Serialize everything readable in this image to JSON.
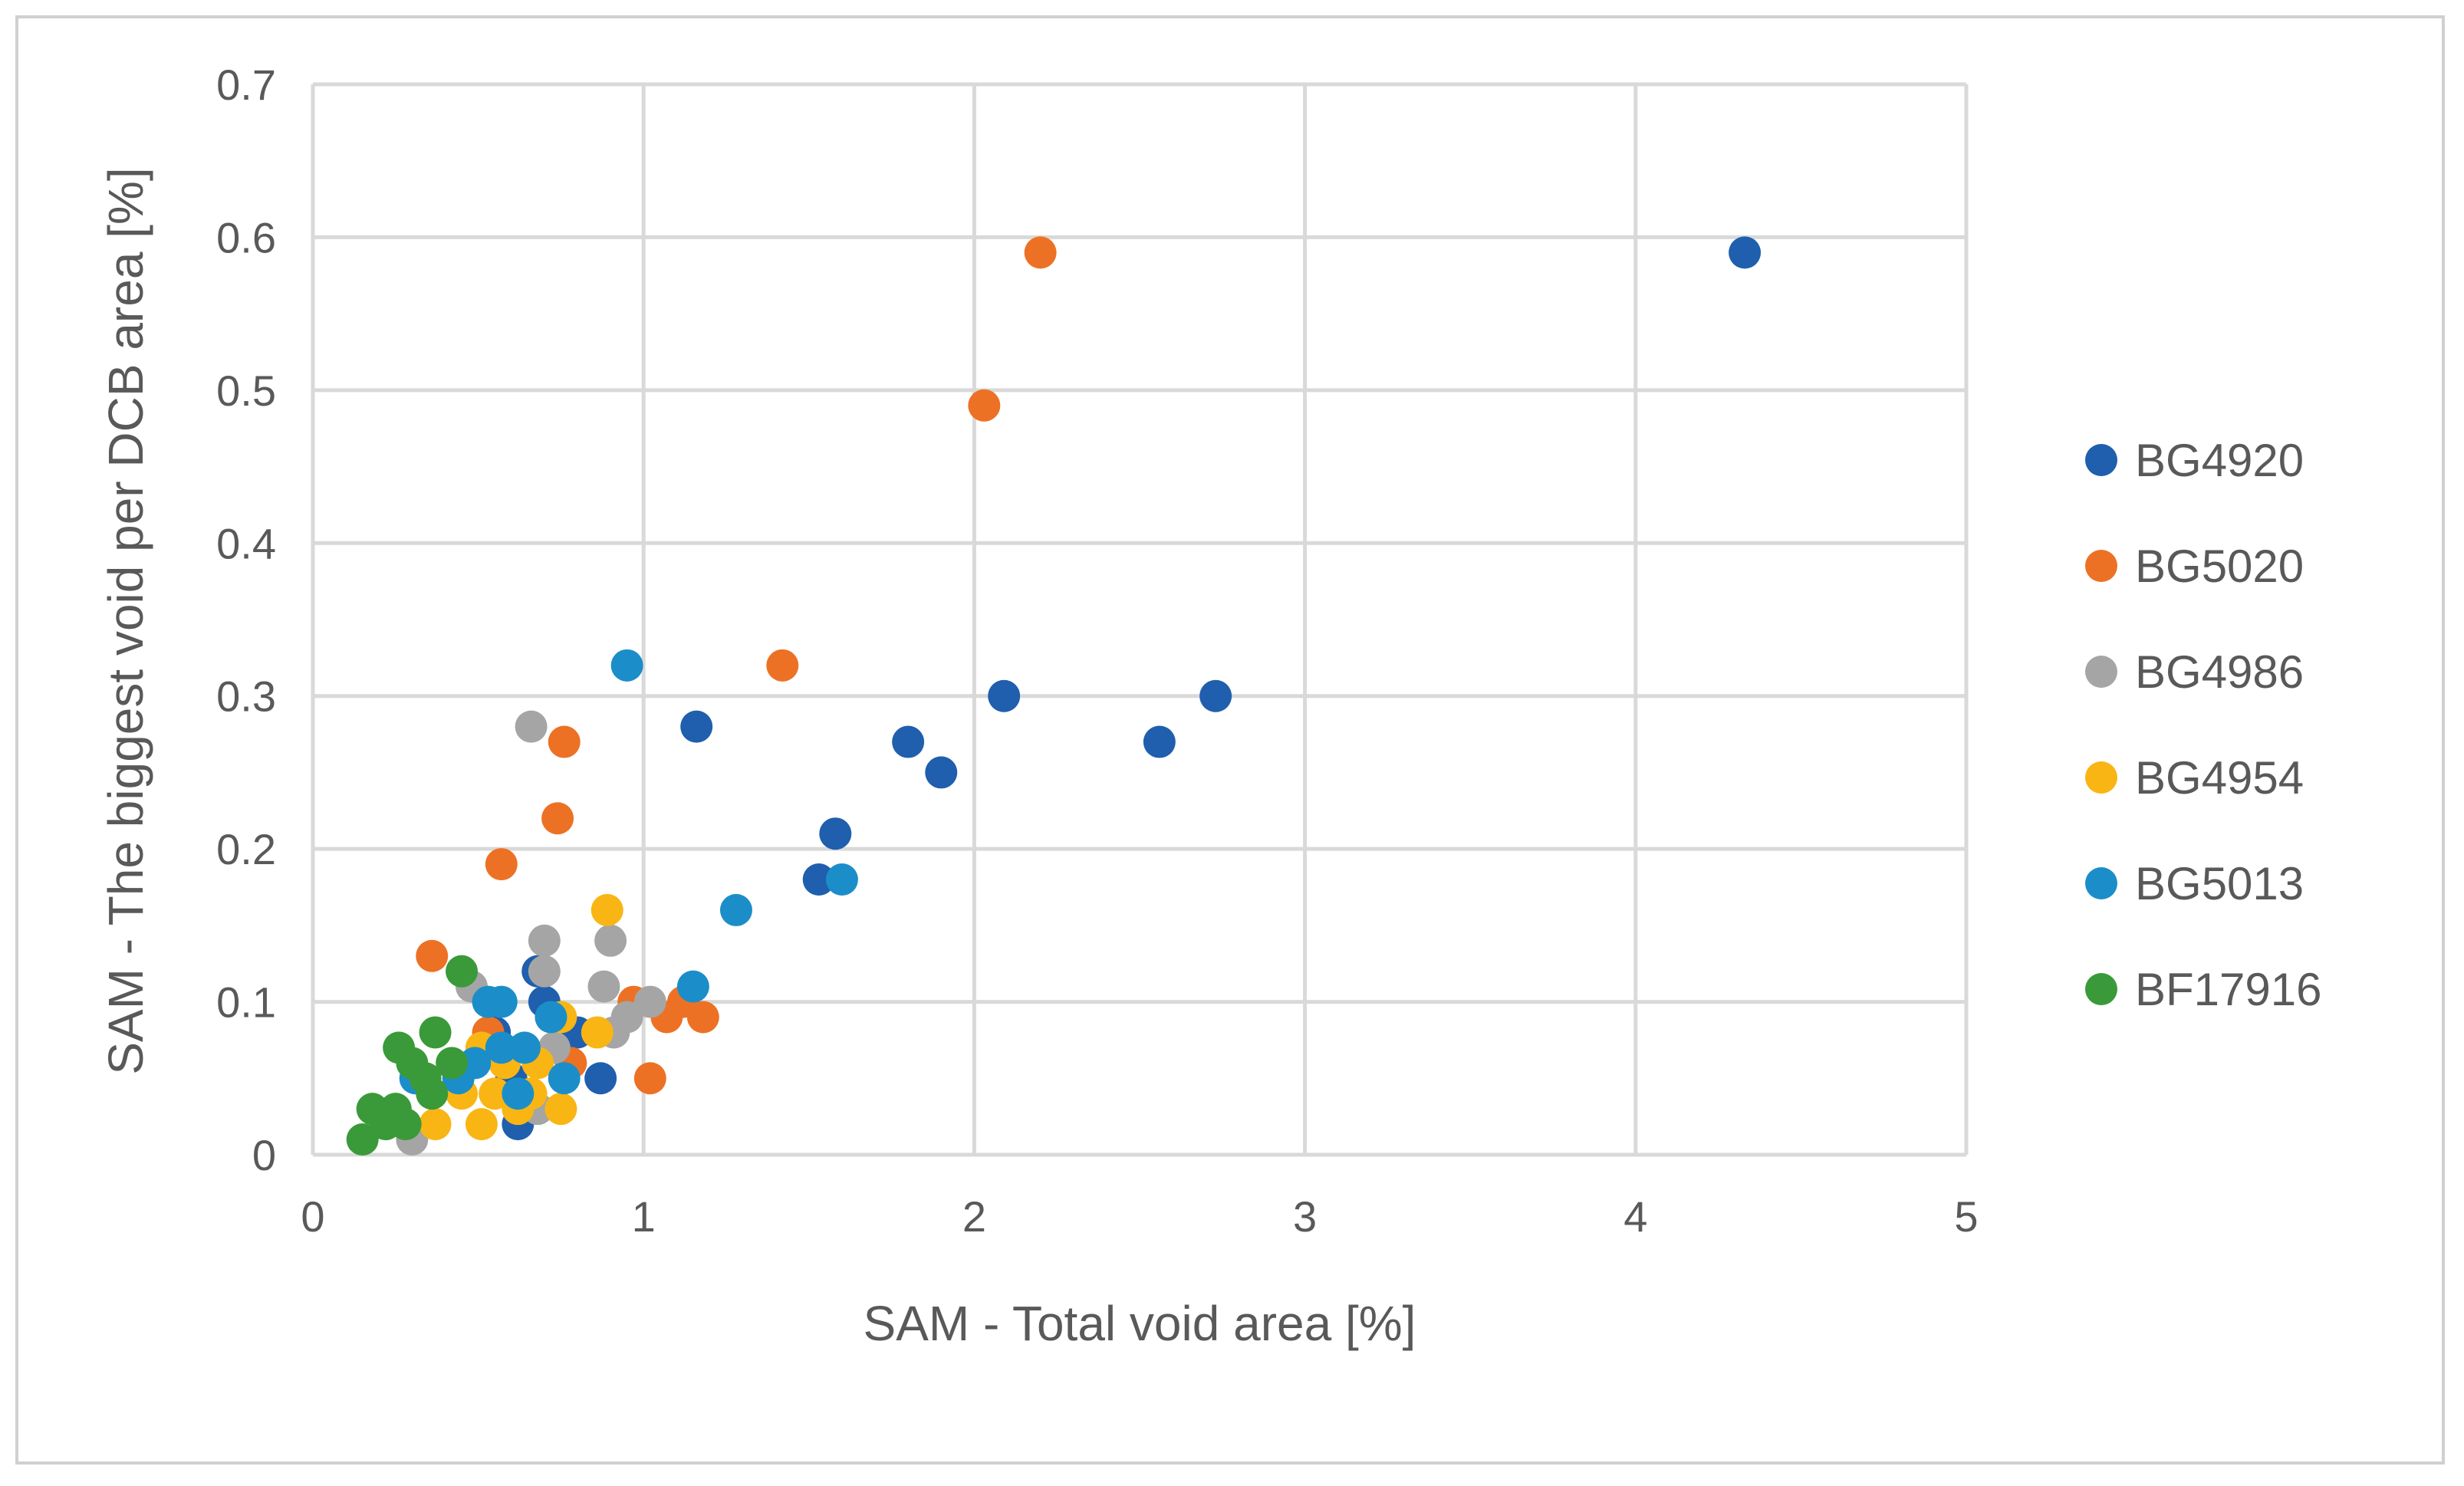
{
  "chart_data": {
    "type": "scatter",
    "title": "",
    "xlabel": "SAM - Total void area [%]",
    "ylabel": "SAM - The biggest void per DCB area [%]",
    "xlim": [
      0,
      5
    ],
    "ylim": [
      0,
      0.7
    ],
    "xticks": [
      0,
      1,
      2,
      3,
      4,
      5
    ],
    "yticks": [
      0,
      0.1,
      0.2,
      0.3,
      0.4,
      0.5,
      0.6,
      0.7
    ],
    "xtick_labels": [
      "0",
      "1",
      "2",
      "3",
      "4",
      "5"
    ],
    "ytick_labels": [
      "0",
      "0.1",
      "0.2",
      "0.3",
      "0.4",
      "0.5",
      "0.6",
      "0.7"
    ],
    "grid": true,
    "legend_position": "right",
    "series": [
      {
        "name": "BG4920",
        "color": "#1f5fad",
        "points": [
          [
            4.33,
            0.59
          ],
          [
            2.73,
            0.3
          ],
          [
            2.56,
            0.27
          ],
          [
            2.09,
            0.3
          ],
          [
            1.9,
            0.25
          ],
          [
            1.8,
            0.27
          ],
          [
            1.58,
            0.21
          ],
          [
            1.53,
            0.18
          ],
          [
            1.16,
            0.28
          ],
          [
            0.87,
            0.05
          ],
          [
            0.68,
            0.12
          ],
          [
            0.7,
            0.1
          ],
          [
            0.72,
            0.09
          ],
          [
            0.8,
            0.08
          ],
          [
            0.55,
            0.08
          ],
          [
            0.6,
            0.05
          ],
          [
            0.62,
            0.02
          ],
          [
            0.65,
            0.03
          ]
        ]
      },
      {
        "name": "BG5020",
        "color": "#ed7125",
        "points": [
          [
            2.2,
            0.59
          ],
          [
            2.03,
            0.49
          ],
          [
            1.42,
            0.32
          ],
          [
            0.76,
            0.27
          ],
          [
            0.74,
            0.22
          ],
          [
            0.57,
            0.19
          ],
          [
            0.36,
            0.13
          ],
          [
            1.18,
            0.09
          ],
          [
            1.07,
            0.09
          ],
          [
            1.12,
            0.1
          ],
          [
            0.97,
            0.1
          ],
          [
            1.02,
            0.05
          ],
          [
            0.53,
            0.08
          ],
          [
            0.78,
            0.06
          ]
        ]
      },
      {
        "name": "BG4986",
        "color": "#a5a5a5",
        "points": [
          [
            0.66,
            0.28
          ],
          [
            0.7,
            0.14
          ],
          [
            0.7,
            0.12
          ],
          [
            0.9,
            0.14
          ],
          [
            0.88,
            0.11
          ],
          [
            1.02,
            0.1
          ],
          [
            0.95,
            0.09
          ],
          [
            0.91,
            0.08
          ],
          [
            0.48,
            0.11
          ],
          [
            0.73,
            0.07
          ],
          [
            0.68,
            0.03
          ],
          [
            0.3,
            0.01
          ]
        ]
      },
      {
        "name": "BG4954",
        "color": "#f9b514",
        "points": [
          [
            0.89,
            0.16
          ],
          [
            0.86,
            0.08
          ],
          [
            0.75,
            0.09
          ],
          [
            0.75,
            0.03
          ],
          [
            0.51,
            0.07
          ],
          [
            0.58,
            0.06
          ],
          [
            0.68,
            0.06
          ],
          [
            0.45,
            0.04
          ],
          [
            0.55,
            0.04
          ],
          [
            0.66,
            0.04
          ],
          [
            0.62,
            0.03
          ],
          [
            0.51,
            0.02
          ],
          [
            0.37,
            0.02
          ]
        ]
      },
      {
        "name": "BG5013",
        "color": "#1b8ec9",
        "points": [
          [
            0.95,
            0.32
          ],
          [
            1.6,
            0.18
          ],
          [
            1.28,
            0.16
          ],
          [
            1.15,
            0.11
          ],
          [
            0.53,
            0.1
          ],
          [
            0.57,
            0.1
          ],
          [
            0.72,
            0.09
          ],
          [
            0.57,
            0.07
          ],
          [
            0.64,
            0.07
          ],
          [
            0.49,
            0.06
          ],
          [
            0.44,
            0.05
          ],
          [
            0.76,
            0.05
          ],
          [
            0.31,
            0.05
          ],
          [
            0.62,
            0.04
          ]
        ]
      },
      {
        "name": "BF17916",
        "color": "#3a9a39",
        "points": [
          [
            0.45,
            0.12
          ],
          [
            0.37,
            0.08
          ],
          [
            0.26,
            0.07
          ],
          [
            0.42,
            0.06
          ],
          [
            0.3,
            0.06
          ],
          [
            0.34,
            0.05
          ],
          [
            0.36,
            0.04
          ],
          [
            0.18,
            0.03
          ],
          [
            0.25,
            0.03
          ],
          [
            0.22,
            0.02
          ],
          [
            0.28,
            0.02
          ],
          [
            0.15,
            0.01
          ]
        ]
      }
    ]
  }
}
